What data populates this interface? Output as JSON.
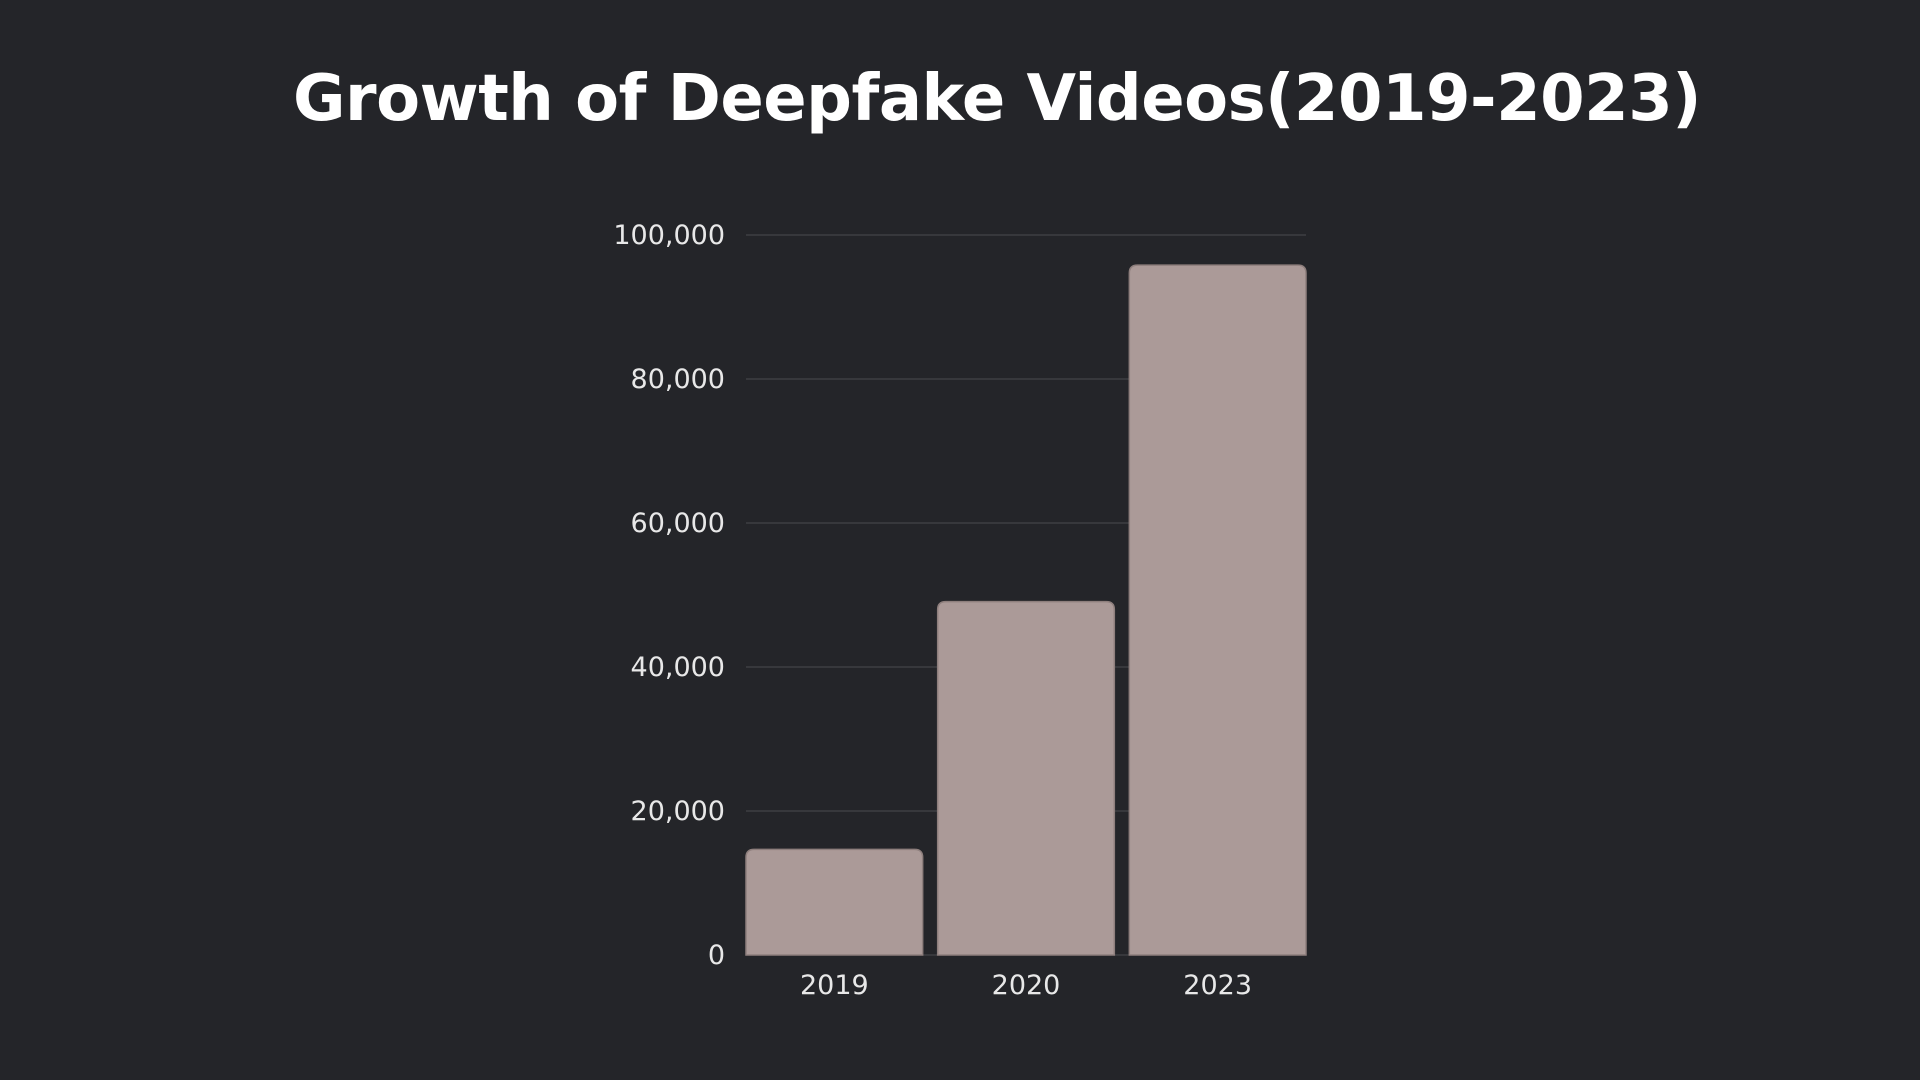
{
  "chart_data": {
    "type": "bar",
    "title": "Growth of Deepfake Videos(2019-2023)",
    "categories": [
      "2019",
      "2020",
      "2023"
    ],
    "values": [
      14678,
      49081,
      95820
    ],
    "ylim": [
      0,
      100000
    ],
    "yticks": [
      0,
      20000,
      40000,
      60000,
      80000,
      100000
    ],
    "ytick_labels": [
      "0",
      "20,000",
      "40,000",
      "60,000",
      "80,000",
      "100,000"
    ],
    "grid": true,
    "legend": "none",
    "colors": {
      "background": "#242529",
      "bar": "#ab9a98",
      "bar_edge": "#8e7f7d",
      "grid": "#4a4b50",
      "text": "#e8e8e8",
      "title": "#ffffff"
    }
  }
}
